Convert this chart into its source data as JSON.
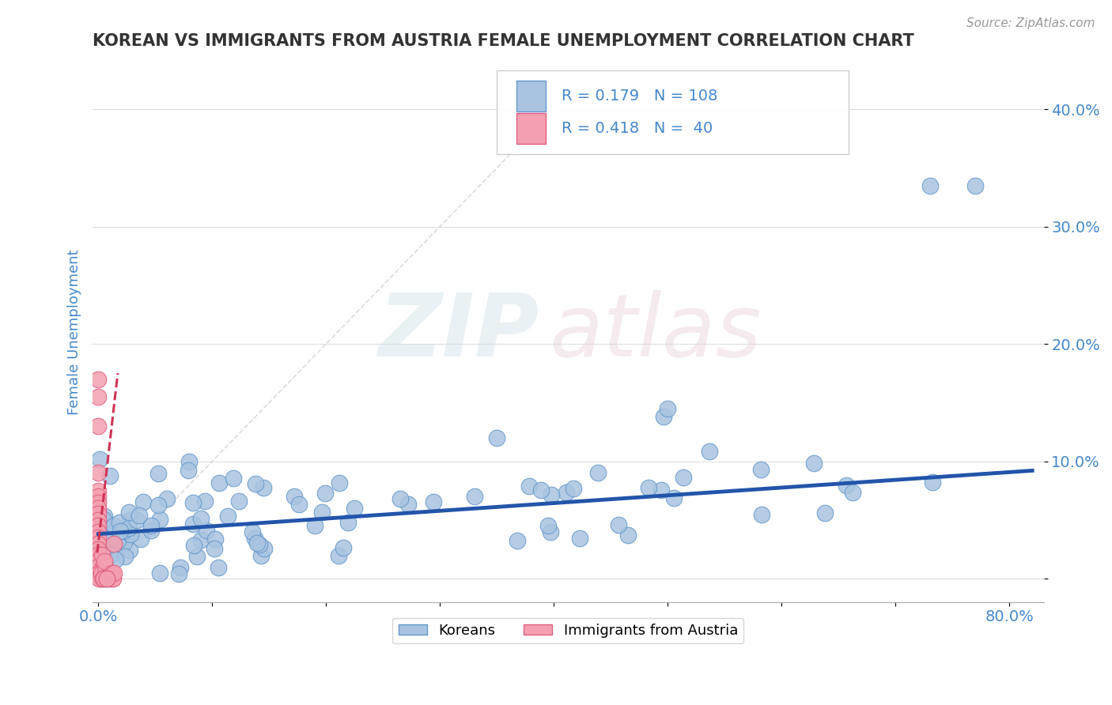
{
  "title": "KOREAN VS IMMIGRANTS FROM AUSTRIA FEMALE UNEMPLOYMENT CORRELATION CHART",
  "source_text": "Source: ZipAtlas.com",
  "ylabel": "Female Unemployment",
  "xlim": [
    -0.005,
    0.83
  ],
  "ylim": [
    -0.02,
    0.44
  ],
  "korean_color": "#a8c4e0",
  "austria_color": "#f4a0b0",
  "korean_edge_color": "#6699cc",
  "austria_edge_color": "#e06080",
  "trend_korean_color": "#2255aa",
  "trend_austria_color": "#cc3355",
  "legend_r_korean": "R = 0.179",
  "legend_n_korean": "N = 108",
  "legend_r_austria": "R = 0.418",
  "legend_n_austria": "N =  40",
  "korean_N": 108,
  "austria_N": 40,
  "background_color": "#ffffff",
  "grid_color": "#dddddd",
  "title_color": "#333333",
  "axis_label_color": "#4488cc",
  "tick_label_color": "#4488cc"
}
